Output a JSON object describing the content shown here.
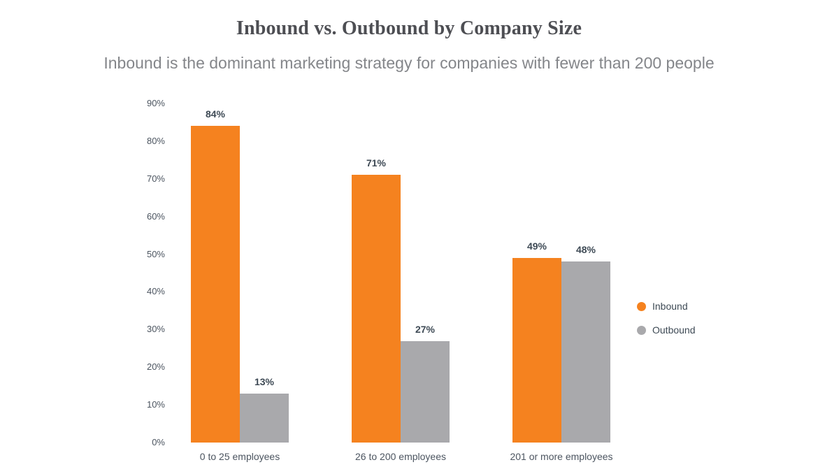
{
  "chart_data": {
    "type": "bar",
    "title": "Inbound vs. Outbound by Company Size",
    "subtitle": "Inbound is the dominant marketing strategy for companies with fewer than 200 people",
    "categories": [
      "0 to 25 employees",
      "26 to 200 employees",
      "201 or more employees"
    ],
    "series": [
      {
        "name": "Inbound",
        "color": "#F5821F",
        "values": [
          84,
          71,
          49
        ]
      },
      {
        "name": "Outbound",
        "color": "#A9A9AC",
        "values": [
          13,
          27,
          48
        ]
      }
    ],
    "value_suffix": "%",
    "data_labels": [
      [
        "84%",
        "71%",
        "49%"
      ],
      [
        "13%",
        "27%",
        "48%"
      ]
    ],
    "y_axis": {
      "min": 0,
      "max": 90,
      "tick_step": 10,
      "tick_labels": [
        "0%",
        "10%",
        "20%",
        "30%",
        "40%",
        "50%",
        "60%",
        "70%",
        "80%",
        "90%"
      ]
    },
    "ylim": [
      0,
      90
    ],
    "grid": false,
    "legend_position": "right",
    "legend": [
      "Inbound",
      "Outbound"
    ]
  }
}
